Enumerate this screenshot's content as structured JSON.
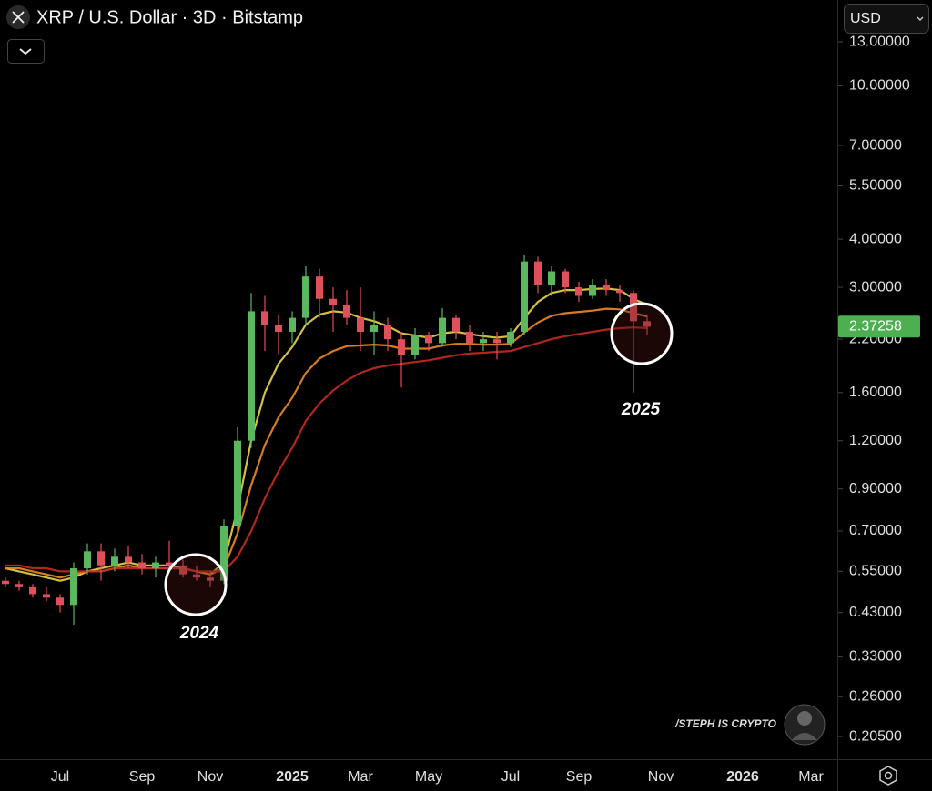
{
  "chart_data": {
    "type": "candlestick",
    "title": "XRP / U.S. Dollar · 3D · Bitstamp",
    "currency": "USD",
    "watermark": "/STEPH IS CRYPTO",
    "log_scale": true,
    "up_color": "#5cb85c",
    "down_color": "#e0505a",
    "categories": [
      null,
      null,
      null,
      null,
      "Jul",
      null,
      null,
      null,
      null,
      null,
      "Sep",
      null,
      null,
      null,
      null,
      "Nov",
      null,
      null,
      null,
      null,
      null,
      "2025",
      null,
      null,
      null,
      null,
      "Mar",
      null,
      null,
      null,
      null,
      "May",
      null,
      null,
      null,
      null,
      null,
      "Jul",
      null,
      null,
      null,
      null,
      "Sep",
      null,
      null,
      null,
      null,
      null,
      "Nov",
      null,
      null,
      null,
      null,
      null,
      "2026",
      null,
      null,
      null,
      null,
      "Mar"
    ],
    "open": [
      0.52,
      0.51,
      0.5,
      0.48,
      0.47,
      0.45,
      0.56,
      0.62,
      0.57,
      0.6,
      0.58,
      0.56,
      0.58,
      0.57,
      0.54,
      0.53,
      0.52,
      0.72,
      1.2,
      2.6,
      2.4,
      2.3,
      2.5,
      3.2,
      2.8,
      2.7,
      2.5,
      2.3,
      2.4,
      2.2,
      2.0,
      2.25,
      2.15,
      2.5,
      2.3,
      2.15,
      2.2,
      2.15,
      2.3,
      3.5,
      3.05,
      3.3,
      3.0,
      2.85,
      3.05,
      2.95,
      2.9,
      2.45,
      null,
      null,
      null,
      null,
      null,
      null,
      null,
      null,
      null,
      null,
      null,
      null
    ],
    "high": [
      0.53,
      0.52,
      0.51,
      0.5,
      0.48,
      0.58,
      0.65,
      0.65,
      0.63,
      0.64,
      0.61,
      0.6,
      0.66,
      0.59,
      0.57,
      0.55,
      0.75,
      1.3,
      2.9,
      2.85,
      2.55,
      2.6,
      3.4,
      3.35,
      3.0,
      2.95,
      3.0,
      2.6,
      2.5,
      2.3,
      2.35,
      2.3,
      2.65,
      2.55,
      2.4,
      2.3,
      2.3,
      2.35,
      3.65,
      3.6,
      3.4,
      3.35,
      3.1,
      3.15,
      3.15,
      3.05,
      2.95,
      2.55,
      null,
      null,
      null,
      null,
      null,
      null,
      null,
      null,
      null,
      null,
      null,
      null
    ],
    "low": [
      0.5,
      0.49,
      0.47,
      0.46,
      0.43,
      0.4,
      0.54,
      0.52,
      0.55,
      0.56,
      0.54,
      0.53,
      0.55,
      0.53,
      0.52,
      0.5,
      0.51,
      0.7,
      1.15,
      2.05,
      2.0,
      2.15,
      2.4,
      2.5,
      2.3,
      2.4,
      2.05,
      2.0,
      2.05,
      1.65,
      1.95,
      2.05,
      2.1,
      2.2,
      2.05,
      2.05,
      1.95,
      2.1,
      2.25,
      2.9,
      2.85,
      2.9,
      2.75,
      2.8,
      2.85,
      2.75,
      1.6,
      2.25,
      null,
      null,
      null,
      null,
      null,
      null,
      null,
      null,
      null,
      null,
      null,
      null
    ],
    "close": [
      0.51,
      0.5,
      0.48,
      0.47,
      0.45,
      0.56,
      0.62,
      0.57,
      0.6,
      0.58,
      0.56,
      0.58,
      0.57,
      0.54,
      0.53,
      0.52,
      0.72,
      1.2,
      2.6,
      2.4,
      2.3,
      2.5,
      3.2,
      2.8,
      2.7,
      2.5,
      2.3,
      2.4,
      2.2,
      2.0,
      2.25,
      2.15,
      2.5,
      2.3,
      2.15,
      2.2,
      2.15,
      2.3,
      3.5,
      3.05,
      3.3,
      3.0,
      2.85,
      3.05,
      2.95,
      2.9,
      2.45,
      2.37,
      null,
      null,
      null,
      null,
      null,
      null,
      null,
      null,
      null,
      null,
      null,
      null
    ],
    "ribbon": [
      {
        "color": "#e9d54c",
        "values": [
          0.56,
          0.55,
          0.54,
          0.53,
          0.52,
          0.53,
          0.55,
          0.56,
          0.57,
          0.58,
          0.57,
          0.57,
          0.57,
          0.56,
          0.55,
          0.54,
          0.58,
          0.8,
          1.2,
          1.6,
          1.9,
          2.1,
          2.4,
          2.55,
          2.6,
          2.58,
          2.5,
          2.45,
          2.38,
          2.28,
          2.25,
          2.22,
          2.28,
          2.3,
          2.27,
          2.24,
          2.22,
          2.24,
          2.5,
          2.75,
          2.9,
          2.95,
          2.95,
          2.97,
          2.98,
          2.95,
          2.8,
          2.7,
          null,
          null,
          null,
          null,
          null,
          null,
          null,
          null,
          null,
          null,
          null,
          null
        ]
      },
      {
        "color": "#ef8a28",
        "values": [
          0.56,
          0.56,
          0.55,
          0.54,
          0.53,
          0.54,
          0.55,
          0.55,
          0.56,
          0.57,
          0.56,
          0.56,
          0.56,
          0.56,
          0.55,
          0.54,
          0.56,
          0.69,
          0.92,
          1.17,
          1.38,
          1.55,
          1.8,
          1.96,
          2.05,
          2.11,
          2.12,
          2.13,
          2.12,
          2.08,
          2.08,
          2.08,
          2.12,
          2.14,
          2.14,
          2.13,
          2.13,
          2.14,
          2.29,
          2.43,
          2.53,
          2.57,
          2.59,
          2.61,
          2.64,
          2.63,
          2.57,
          2.52,
          null,
          null,
          null,
          null,
          null,
          null,
          null,
          null,
          null,
          null,
          null,
          null
        ]
      },
      {
        "color": "#c62a20",
        "values": [
          0.57,
          0.57,
          0.56,
          0.56,
          0.55,
          0.55,
          0.55,
          0.55,
          0.56,
          0.56,
          0.56,
          0.56,
          0.56,
          0.56,
          0.55,
          0.55,
          0.55,
          0.6,
          0.7,
          0.85,
          1.0,
          1.15,
          1.35,
          1.5,
          1.62,
          1.72,
          1.8,
          1.85,
          1.88,
          1.9,
          1.92,
          1.94,
          1.97,
          2.0,
          2.02,
          2.03,
          2.04,
          2.05,
          2.1,
          2.15,
          2.2,
          2.24,
          2.27,
          2.3,
          2.33,
          2.35,
          2.36,
          2.35,
          null,
          null,
          null,
          null,
          null,
          null,
          null,
          null,
          null,
          null,
          null,
          null
        ]
      }
    ],
    "last_price": 2.37258,
    "last_price_color": "#4caf50",
    "ylim": [
      0.179,
      16.7
    ],
    "yticks": [
      {
        "value": 13,
        "label": "13.00000"
      },
      {
        "value": 10,
        "label": "10.00000"
      },
      {
        "value": 7,
        "label": "7.00000"
      },
      {
        "value": 5.5,
        "label": "5.50000"
      },
      {
        "value": 4,
        "label": "4.00000"
      },
      {
        "value": 3,
        "label": "3.00000"
      },
      {
        "value": 2.2,
        "label": "2.20000"
      },
      {
        "value": 1.6,
        "label": "1.60000"
      },
      {
        "value": 1.2,
        "label": "1.20000"
      },
      {
        "value": 0.9,
        "label": "0.90000"
      },
      {
        "value": 0.7,
        "label": "0.70000"
      },
      {
        "value": 0.55,
        "label": "0.55000"
      },
      {
        "value": 0.43,
        "label": "0.43000"
      },
      {
        "value": 0.33,
        "label": "0.33000"
      },
      {
        "value": 0.26,
        "label": "0.26000"
      },
      {
        "value": 0.205,
        "label": "0.20500"
      }
    ],
    "annotations": [
      {
        "text": "2024"
      },
      {
        "text": "2025"
      }
    ]
  }
}
